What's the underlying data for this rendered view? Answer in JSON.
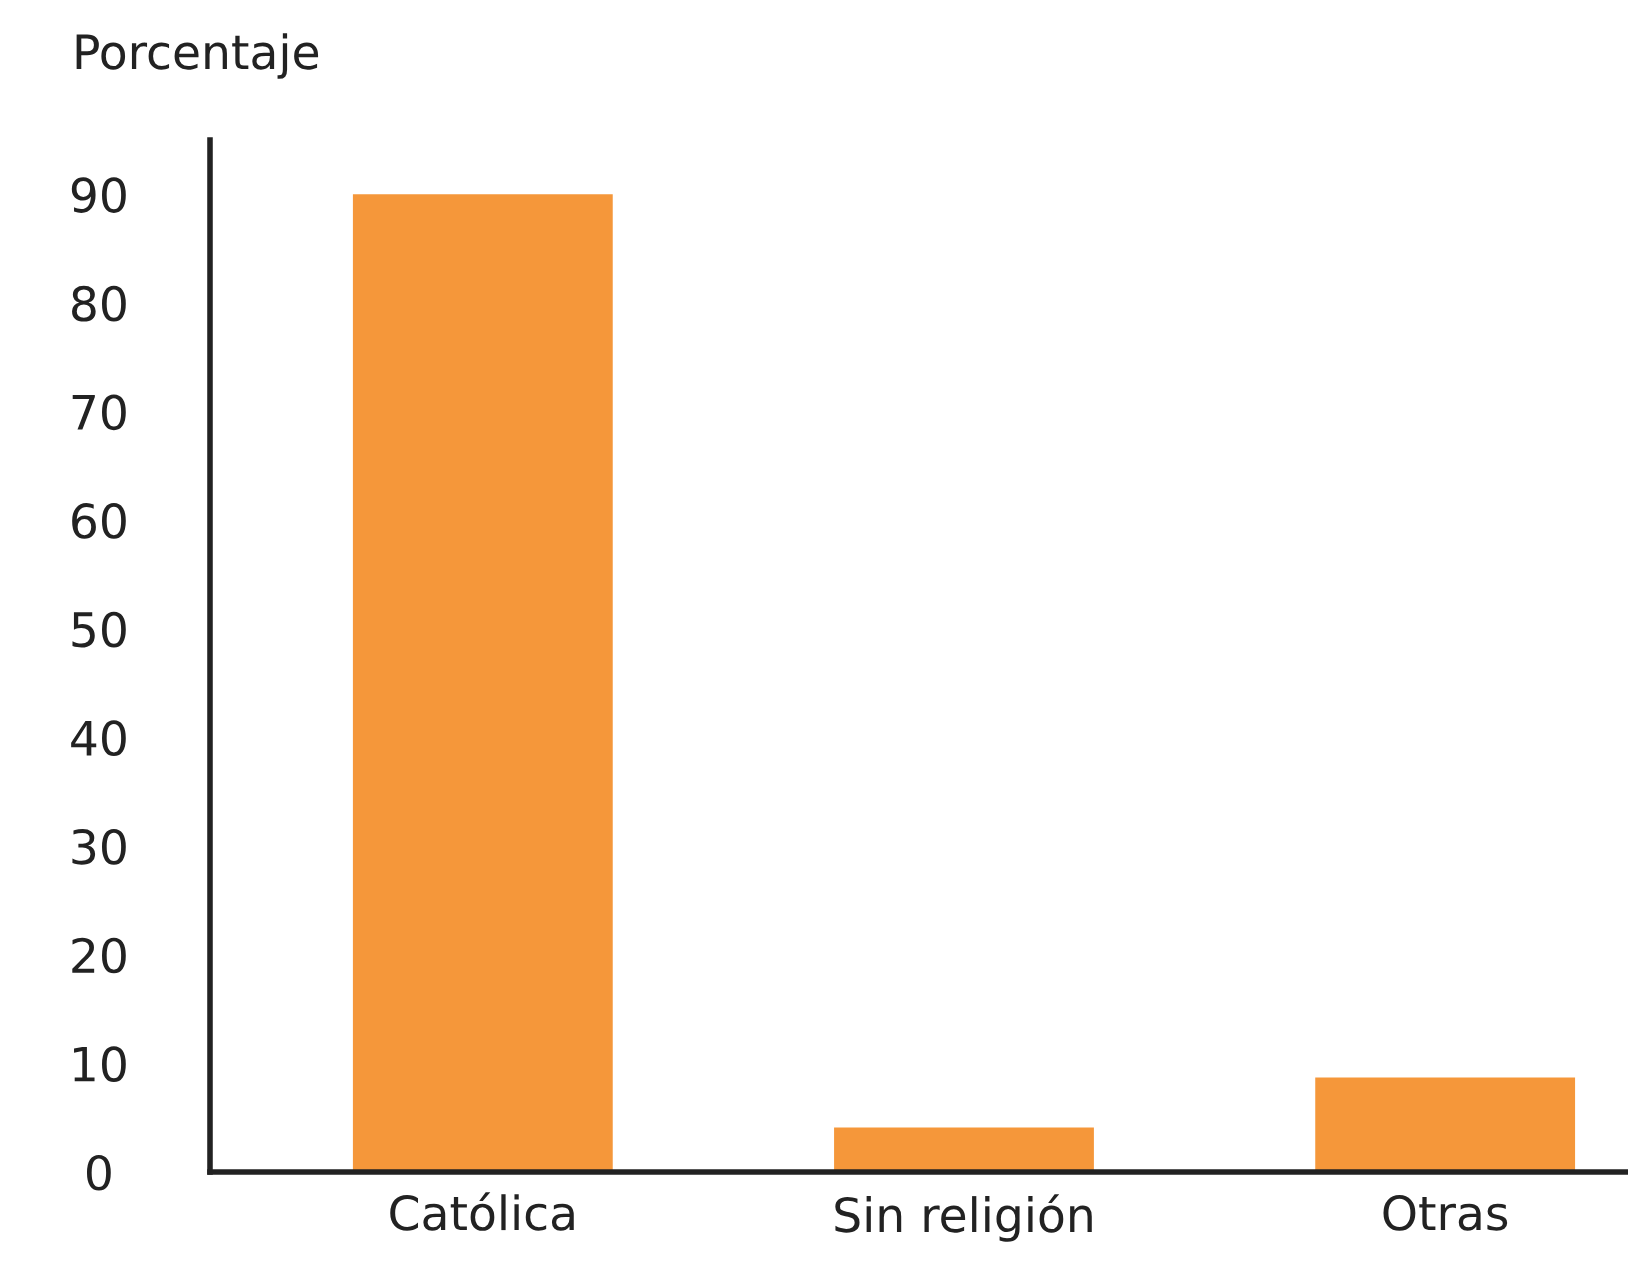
{
  "chart_data": {
    "type": "bar",
    "ylabel": "Porcentaje",
    "categories": [
      "Católica",
      "Sin religión",
      "Otras"
    ],
    "values": [
      90,
      4.1,
      8.7
    ],
    "color": "#f5973a",
    "ylim": [
      0,
      95
    ],
    "yticks": [
      0,
      10,
      20,
      30,
      40,
      50,
      60,
      70,
      80,
      90
    ],
    "grid": false,
    "legend": false
  }
}
